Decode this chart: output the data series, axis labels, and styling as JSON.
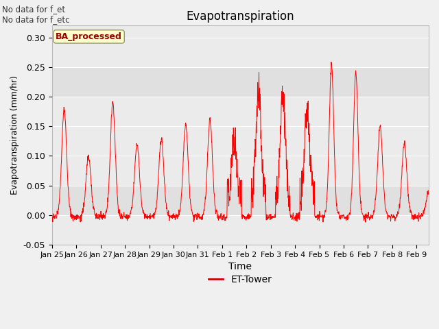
{
  "title": "Evapotranspiration",
  "xlabel": "Time",
  "ylabel": "Evapotranspiration (mm/hr)",
  "ylim": [
    -0.05,
    0.32
  ],
  "xlim_days": 15.5,
  "legend_label": "ET-Tower",
  "legend_line_color": "#cc0000",
  "annotation_text": "No data for f_et\nNo data for f_etc",
  "ba_label": "BA_processed",
  "ba_box_facecolor": "#ffffcc",
  "ba_box_edgecolor": "#999966",
  "ba_text_color": "#990000",
  "line_color": "#ff0000",
  "fig_bg_color": "#f0f0f0",
  "plot_bg": "#ebebeb",
  "grid_color": "#ffffff",
  "yticks": [
    -0.05,
    0.0,
    0.05,
    0.1,
    0.15,
    0.2,
    0.25,
    0.3
  ],
  "xtick_labels": [
    "Jan 25",
    "Jan 26",
    "Jan 27",
    "Jan 28",
    "Jan 29",
    "Jan 30",
    "Jan 31",
    "Feb 1",
    "Feb 2",
    "Feb 3",
    "Feb 4",
    "Feb 5",
    "Feb 6",
    "Feb 7",
    "Feb 8",
    "Feb 9"
  ],
  "band1": [
    0.2,
    0.25
  ],
  "band1_color": "#e0e0e0",
  "band2": [
    0.0,
    0.05
  ],
  "band2_color": "#e0e0e0",
  "peak_amps": [
    0.18,
    0.1,
    0.19,
    0.12,
    0.13,
    0.155,
    0.16,
    0.1,
    0.185,
    0.17,
    0.145,
    0.255,
    0.24,
    0.15,
    0.12,
    0.04
  ],
  "peak_widths": [
    0.1,
    0.1,
    0.1,
    0.1,
    0.1,
    0.1,
    0.1,
    0.1,
    0.1,
    0.1,
    0.1,
    0.09,
    0.09,
    0.1,
    0.1,
    0.1
  ],
  "n_days": 16,
  "pts_per_day": 96
}
